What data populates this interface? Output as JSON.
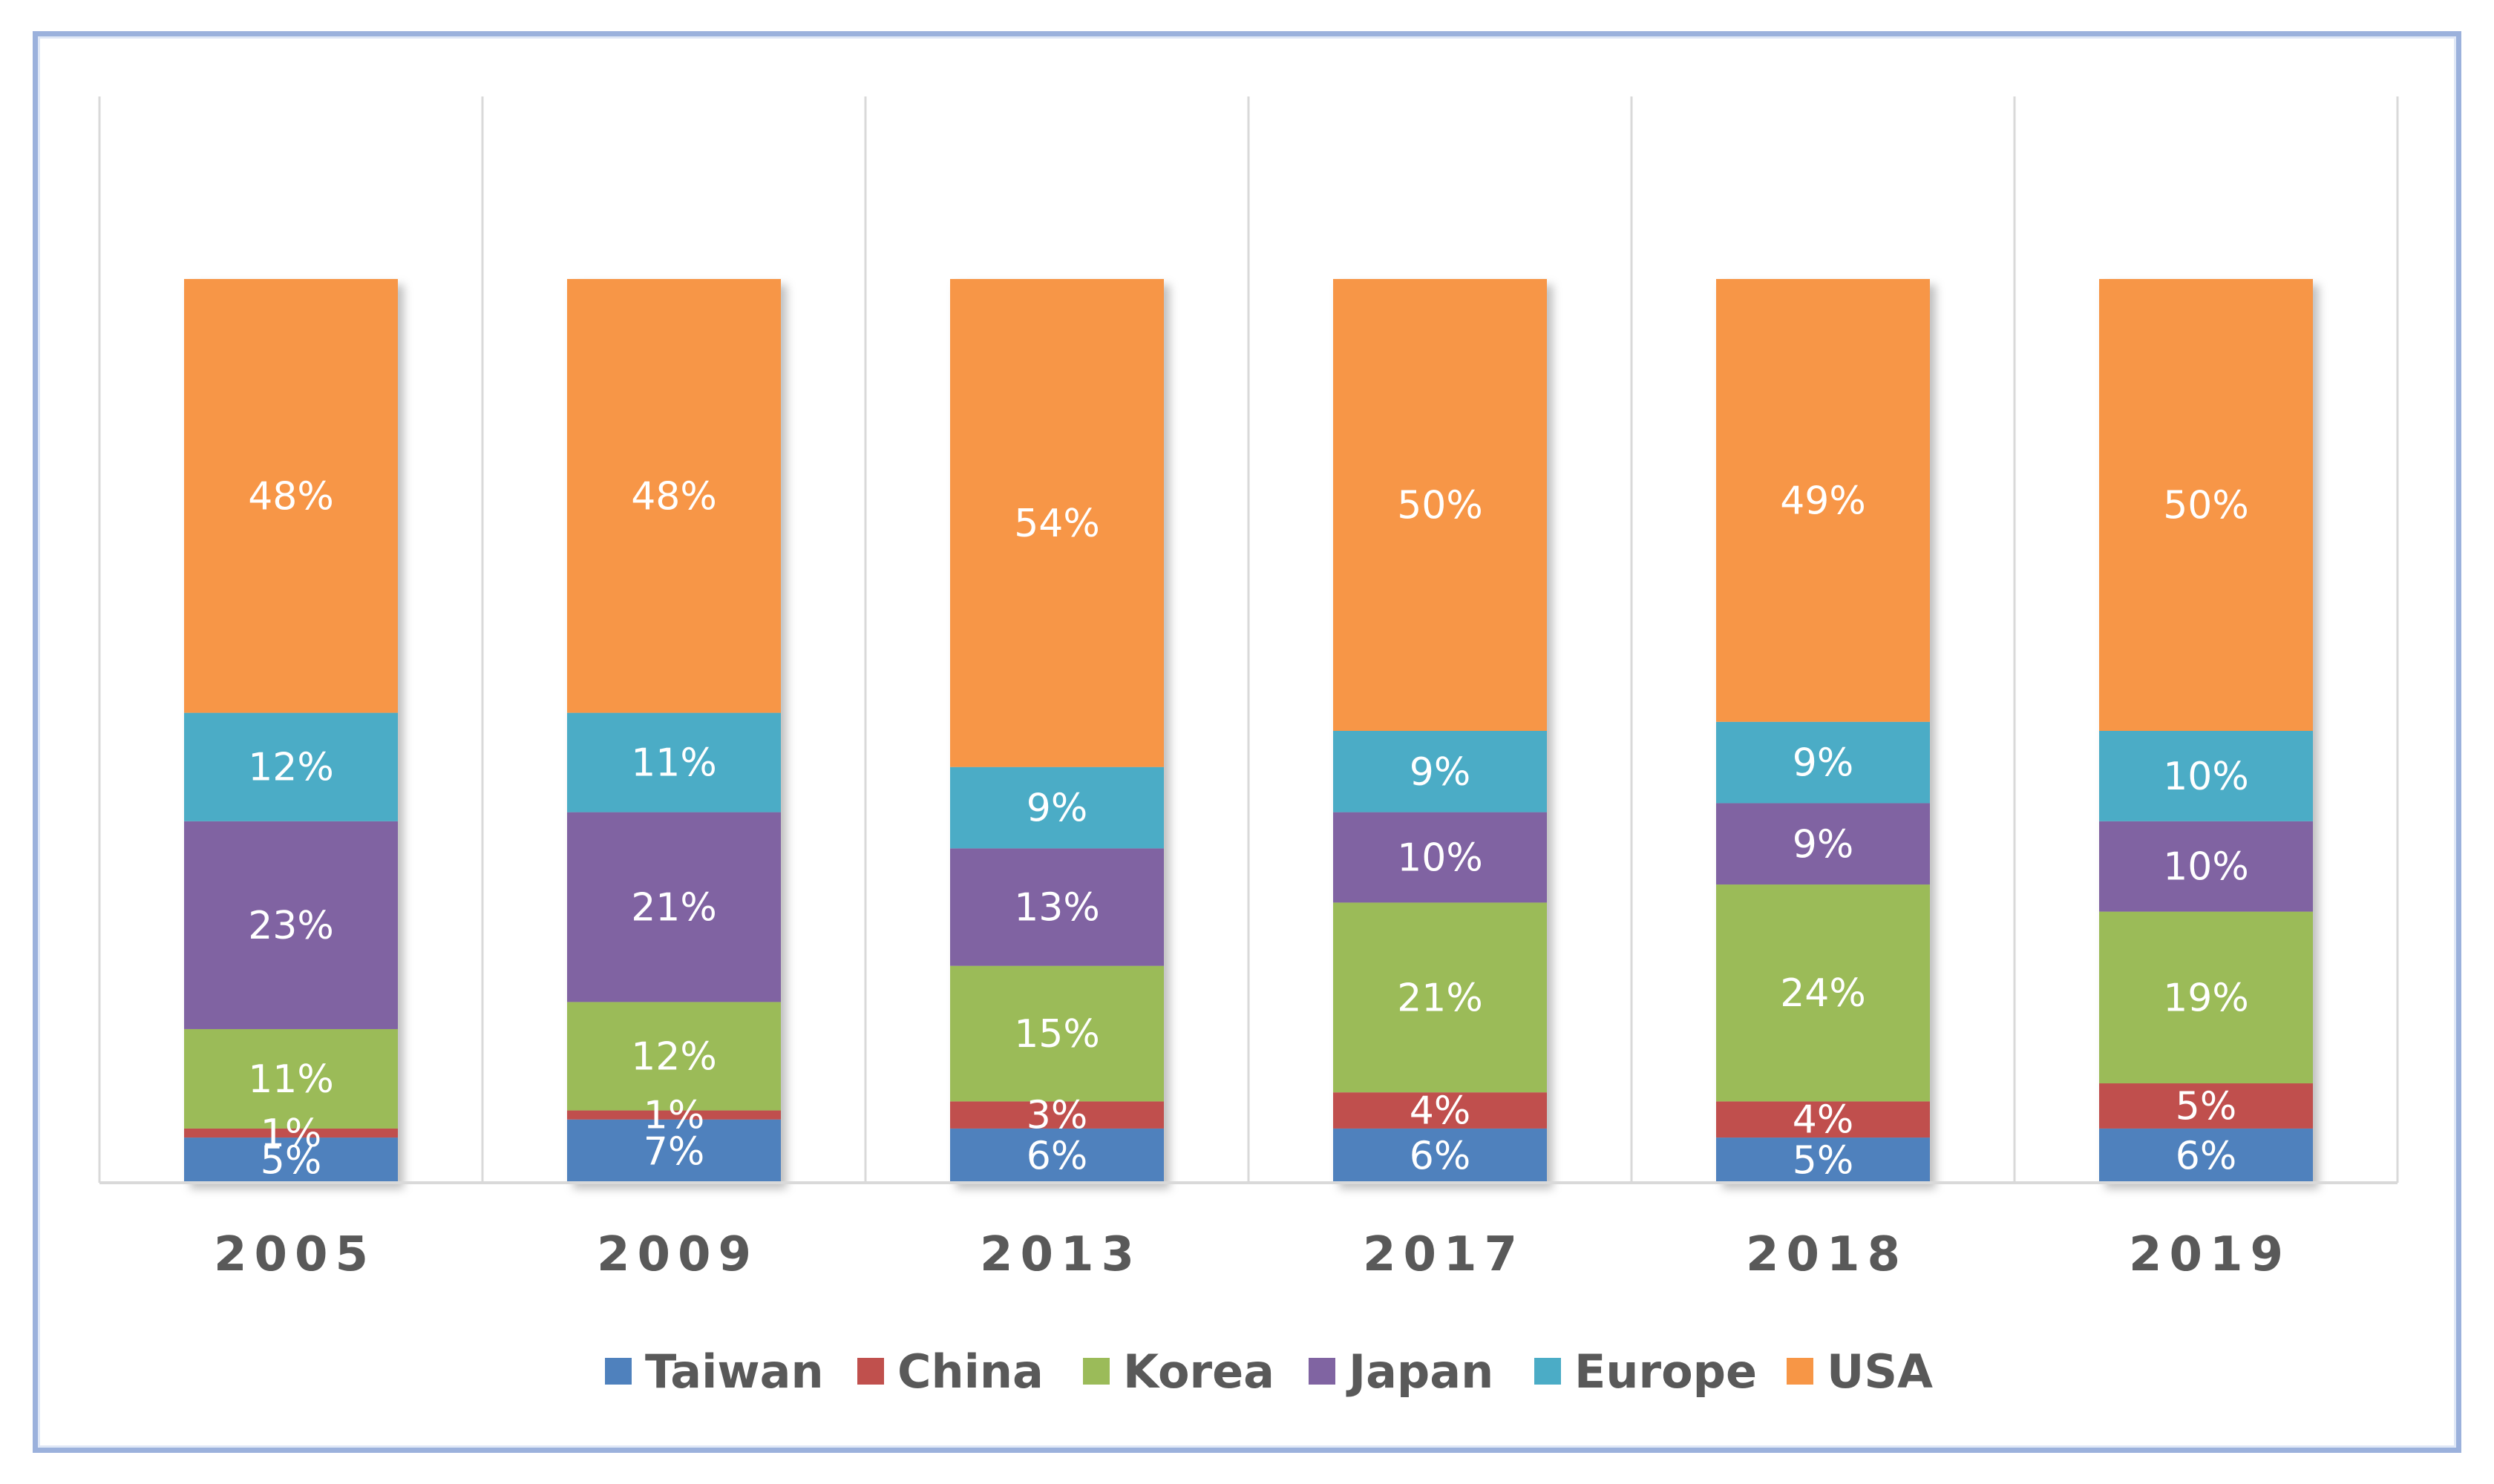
{
  "chart_data": {
    "type": "bar",
    "stacked": true,
    "normalized_percent": true,
    "categories": [
      "2005",
      "2009",
      "2013",
      "2017",
      "2018",
      "2019"
    ],
    "series": [
      {
        "name": "Taiwan",
        "color": "#4f81bd",
        "values": [
          5,
          7,
          6,
          6,
          5,
          6
        ],
        "labels": [
          "5%",
          "7%",
          "6%",
          "6%",
          "5%",
          "6%"
        ]
      },
      {
        "name": "China",
        "color": "#c0504d",
        "values": [
          1,
          1,
          3,
          4,
          4,
          5
        ],
        "labels": [
          "1%",
          "1%",
          "3%",
          "4%",
          "4%",
          "5%"
        ]
      },
      {
        "name": "Korea",
        "color": "#9bbb59",
        "values": [
          11,
          12,
          15,
          21,
          24,
          19
        ],
        "labels": [
          "11%",
          "12%",
          "15%",
          "21%",
          "24%",
          "19%"
        ]
      },
      {
        "name": "Japan",
        "color": "#8064a2",
        "values": [
          23,
          21,
          13,
          10,
          9,
          10
        ],
        "labels": [
          "23%",
          "21%",
          "13%",
          "10%",
          "9%",
          "10%"
        ]
      },
      {
        "name": "Europe",
        "color": "#4bacc6",
        "values": [
          12,
          11,
          9,
          9,
          9,
          10
        ],
        "labels": [
          "12%",
          "11%",
          "9%",
          "9%",
          "9%",
          "10%"
        ]
      },
      {
        "name": "USA",
        "color": "#f79646",
        "values": [
          48,
          48,
          54,
          50,
          49,
          50
        ],
        "labels": [
          "48%",
          "48%",
          "54%",
          "50%",
          "49%",
          "50%"
        ]
      }
    ],
    "title": "",
    "xlabel": "",
    "ylabel": "",
    "grid": "vertical category separators",
    "legend_position": "bottom"
  }
}
